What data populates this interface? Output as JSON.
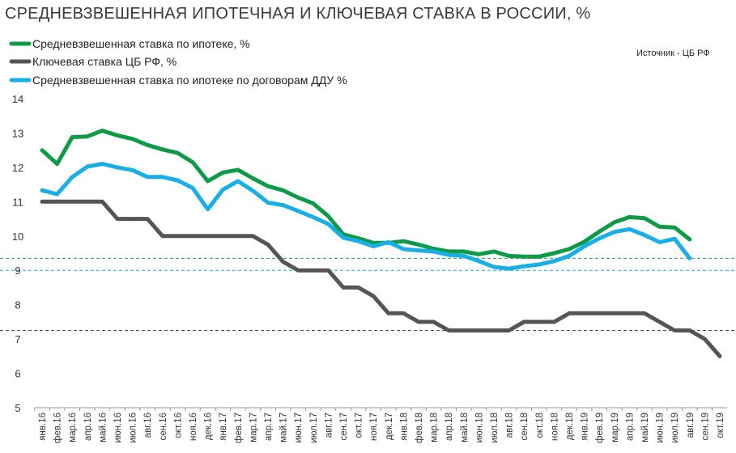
{
  "chart_data": {
    "type": "line",
    "title": "СРЕДНЕВЗВЕШЕННАЯ ИПОТЕЧНАЯ  И КЛЮЧЕВАЯ СТАВКА В РОССИИ, %",
    "source": "Источник  - ЦБ РФ",
    "xlabel": "",
    "ylabel": "",
    "ylim": [
      5,
      14
    ],
    "yticks": [
      5,
      6,
      7,
      8,
      9,
      10,
      11,
      12,
      13,
      14
    ],
    "grid": false,
    "legend_position": "top-left",
    "categories": [
      "янв.16",
      "фев.16",
      "мар.16",
      "апр.16",
      "май.16",
      "июн.16",
      "июл.16",
      "авг.16",
      "сен.16",
      "окт.16",
      "ноя.16",
      "дек.16",
      "янв.17",
      "фев.17",
      "мар.17",
      "апр.17",
      "май.17",
      "июн.17",
      "июл.17",
      "авг.17",
      "сен.17",
      "окт.17",
      "ноя.17",
      "дек.17",
      "янв.18",
      "фев.18",
      "мар.18",
      "апр.18",
      "май.18",
      "июн.18",
      "июл.18",
      "авг.18",
      "сен.18",
      "окт.18",
      "ноя.18",
      "дек.18",
      "янв.19",
      "фев.19",
      "мар.19",
      "апр.19",
      "май.19",
      "июн.19",
      "июл.19",
      "авг.19",
      "сен.19",
      "окт.19"
    ],
    "series": [
      {
        "name": "Средневзвешенная ставка по ипотеке, %",
        "color": "#0e9a47",
        "values": [
          12.5,
          12.1,
          12.88,
          12.9,
          13.07,
          12.93,
          12.83,
          12.65,
          12.52,
          12.42,
          12.15,
          11.6,
          11.85,
          11.93,
          11.68,
          11.45,
          11.33,
          11.12,
          10.95,
          10.58,
          10.05,
          9.93,
          9.8,
          9.8,
          9.85,
          9.75,
          9.63,
          9.55,
          9.55,
          9.47,
          9.55,
          9.42,
          9.4,
          9.4,
          9.5,
          9.62,
          9.83,
          10.13,
          10.4,
          10.55,
          10.52,
          10.27,
          10.25,
          9.9,
          null,
          null
        ]
      },
      {
        "name": "Ключевая ставка ЦБ РФ, %",
        "color": "#555555",
        "values": [
          11,
          11,
          11,
          11,
          11,
          10.5,
          10.5,
          10.5,
          10,
          10,
          10,
          10,
          10,
          10,
          10,
          9.75,
          9.25,
          9,
          9,
          9,
          8.5,
          8.5,
          8.25,
          7.75,
          7.75,
          7.5,
          7.5,
          7.25,
          7.25,
          7.25,
          7.25,
          7.25,
          7.5,
          7.5,
          7.5,
          7.75,
          7.75,
          7.75,
          7.75,
          7.75,
          7.75,
          7.5,
          7.25,
          7.25,
          7,
          6.5
        ]
      },
      {
        "name": "Средневзвешенная ставка по ипотеке по договорам ДДУ %",
        "color": "#19aee6",
        "values": [
          11.33,
          11.22,
          11.72,
          12.02,
          12.1,
          12.0,
          11.92,
          11.72,
          11.72,
          11.62,
          11.4,
          10.78,
          11.35,
          11.6,
          11.32,
          10.97,
          10.9,
          10.73,
          10.55,
          10.35,
          9.95,
          9.85,
          9.7,
          9.82,
          9.62,
          9.58,
          9.55,
          9.45,
          9.42,
          9.27,
          9.1,
          9.05,
          9.12,
          9.17,
          9.27,
          9.42,
          9.7,
          9.93,
          10.12,
          10.2,
          10.03,
          9.82,
          9.92,
          9.35,
          null,
          null
        ]
      }
    ],
    "reference_lines": [
      {
        "y": 9.35,
        "color": "#2b9b63",
        "style": "dashed"
      },
      {
        "y": 9.0,
        "color": "#19aee6",
        "style": "dashed"
      },
      {
        "y": 7.25,
        "color": "#555555",
        "style": "dashed"
      }
    ]
  }
}
